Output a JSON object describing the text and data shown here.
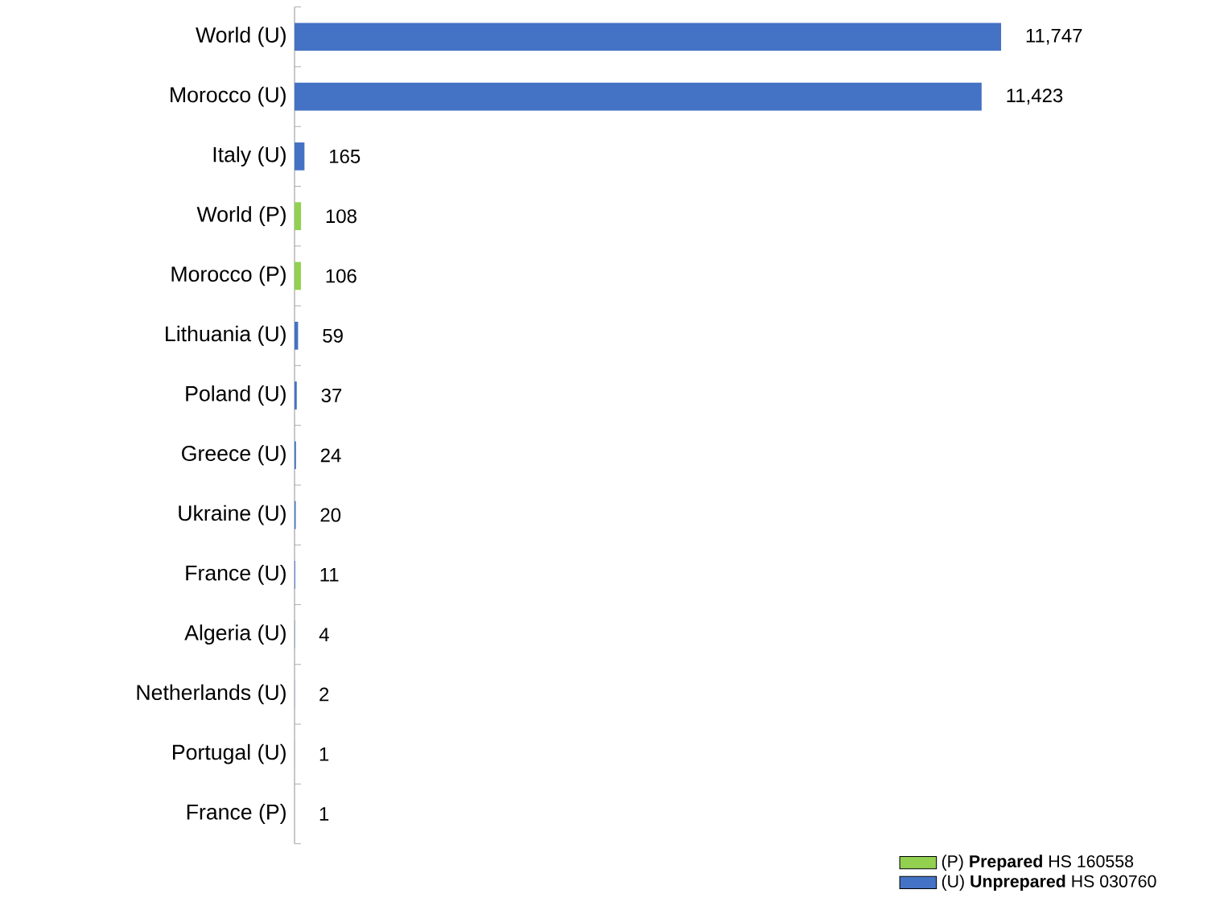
{
  "chart_data": {
    "type": "bar",
    "orientation": "horizontal",
    "stacked": true,
    "categories": [
      "World (U)",
      "Morocco (U)",
      "Italy (U)",
      "World (P)",
      "Morocco (P)",
      "Lithuania (U)",
      "Poland (U)",
      "Greece (U)",
      "Ukraine (U)",
      "France (U)",
      "Algeria (U)",
      "Netherlands (U)",
      "Portugal (U)",
      "France (P)"
    ],
    "series": [
      {
        "name": "(P) **Prepared** HS 160558",
        "color": "#92d050",
        "values": [
          null,
          null,
          null,
          108,
          106,
          null,
          null,
          null,
          null,
          null,
          null,
          null,
          null,
          1
        ],
        "value_labels": [
          null,
          null,
          null,
          "108",
          "106",
          null,
          null,
          null,
          null,
          null,
          null,
          null,
          null,
          "1"
        ]
      },
      {
        "name": "(U) **Unprepared** HS 030760",
        "color": "#4472c4",
        "values": [
          11747,
          11423,
          165,
          null,
          null,
          59,
          37,
          24,
          20,
          11,
          4,
          2,
          1,
          null
        ],
        "value_labels": [
          "11,747",
          "11,423",
          "165",
          null,
          null,
          "59",
          "37",
          "24",
          "20",
          "11",
          "4",
          "2",
          "1",
          null
        ]
      }
    ],
    "legend": "bottom right"
  }
}
